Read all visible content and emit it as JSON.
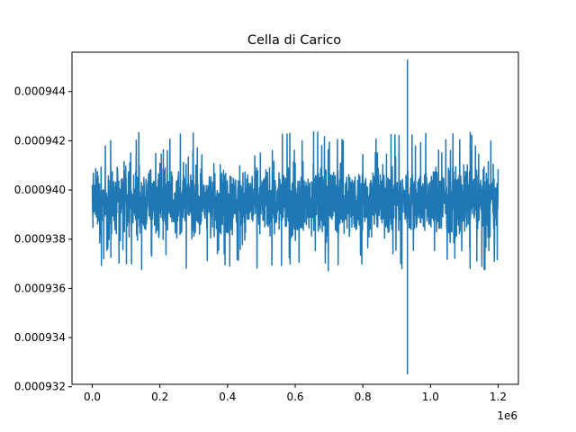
{
  "chart_data": {
    "type": "line",
    "title": "Cella di Carico",
    "xlabel": "",
    "ylabel": "",
    "x_offset_label": "1e6",
    "xlim": [
      -0.06,
      1.26
    ],
    "ylim": [
      0.0009321,
      0.0009456
    ],
    "x_ticks": [
      {
        "value": 0.0,
        "label": "0.0"
      },
      {
        "value": 0.2,
        "label": "0.2"
      },
      {
        "value": 0.4,
        "label": "0.4"
      },
      {
        "value": 0.6,
        "label": "0.6"
      },
      {
        "value": 0.8,
        "label": "0.8"
      },
      {
        "value": 1.0,
        "label": "1.0"
      },
      {
        "value": 1.2,
        "label": "1.2"
      }
    ],
    "y_ticks": [
      {
        "value": 0.000932,
        "label": "0.000932"
      },
      {
        "value": 0.000934,
        "label": "0.000934"
      },
      {
        "value": 0.000936,
        "label": "0.000936"
      },
      {
        "value": 0.000938,
        "label": "0.000938"
      },
      {
        "value": 0.00094,
        "label": "0.000940"
      },
      {
        "value": 0.000942,
        "label": "0.000942"
      },
      {
        "value": 0.000944,
        "label": "0.000944"
      }
    ],
    "series": [
      {
        "color": "#1f77b4",
        "x_range": [
          0.0,
          1.2
        ],
        "dense_band": [
          0.0009377,
          0.0009414
        ],
        "noise_extremes": [
          0.0009366,
          0.0009424
        ],
        "spikes": [
          {
            "x": 0.932,
            "y": 0.0009453
          },
          {
            "x": 0.932,
            "y": 0.0009325
          }
        ]
      }
    ]
  }
}
